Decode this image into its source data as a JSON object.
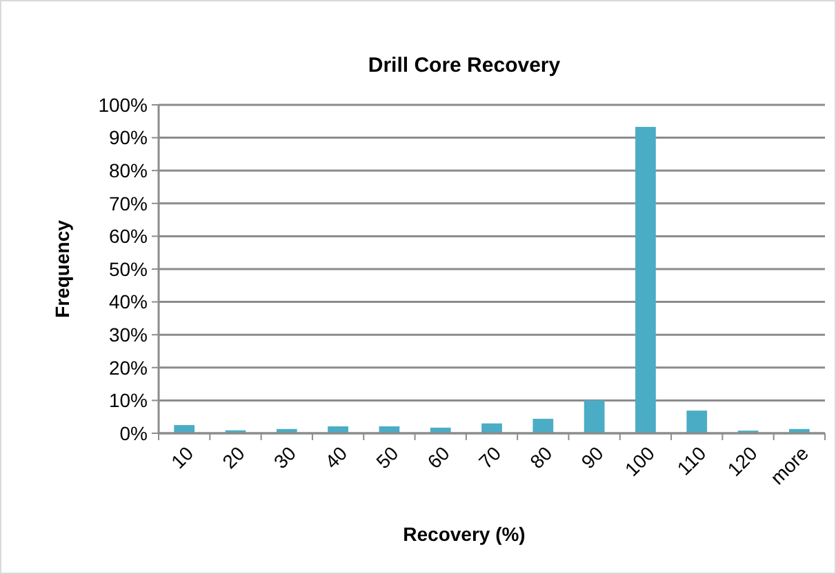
{
  "chart_data": {
    "type": "bar",
    "title": "Drill Core Recovery",
    "xlabel": "Recovery (%)",
    "ylabel": "Frequency",
    "categories": [
      "10",
      "20",
      "30",
      "40",
      "50",
      "60",
      "70",
      "80",
      "90",
      "100",
      "110",
      "120",
      "more"
    ],
    "values": [
      2.5,
      0.9,
      1.3,
      2.1,
      2.1,
      1.7,
      3.0,
      4.4,
      10,
      93.3,
      6.9,
      0.8,
      1.3
    ],
    "color": "#4bacc6",
    "ylim": [
      0,
      100
    ],
    "yticks": [
      {
        "value": 0,
        "label": "0%"
      },
      {
        "value": 10,
        "label": "10%"
      },
      {
        "value": 20,
        "label": "20%"
      },
      {
        "value": 30,
        "label": "30%"
      },
      {
        "value": 40,
        "label": "40%"
      },
      {
        "value": 50,
        "label": "50%"
      },
      {
        "value": 60,
        "label": "60%"
      },
      {
        "value": 70,
        "label": "70%"
      },
      {
        "value": 80,
        "label": "80%"
      },
      {
        "value": 90,
        "label": "90%"
      },
      {
        "value": 100,
        "label": "100%"
      }
    ],
    "grid": "y"
  }
}
